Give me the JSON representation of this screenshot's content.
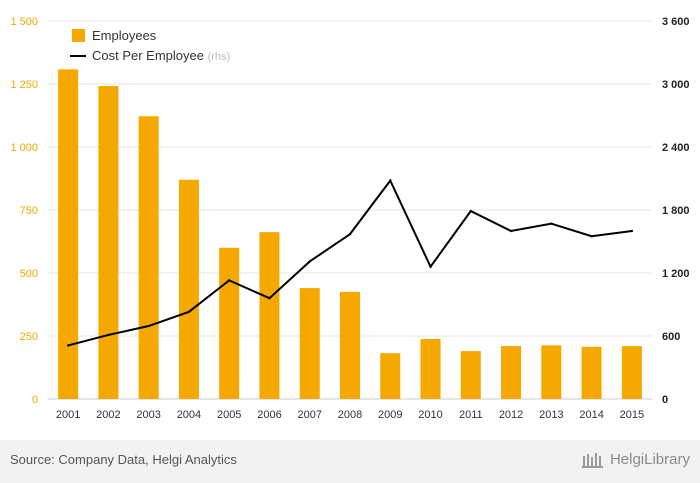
{
  "chart_data": {
    "type": "bar",
    "categories": [
      "2001",
      "2002",
      "2003",
      "2004",
      "2005",
      "2006",
      "2007",
      "2008",
      "2009",
      "2010",
      "2011",
      "2012",
      "2013",
      "2014",
      "2015"
    ],
    "series": [
      {
        "name": "Employees",
        "type": "bar",
        "axis": "left",
        "color": "#f5a800",
        "values": [
          1308,
          1242,
          1122,
          870,
          600,
          662,
          440,
          425,
          182,
          238,
          190,
          210,
          213,
          207,
          210
        ]
      },
      {
        "name": "Cost Per Employee",
        "suffix": "(rhs)",
        "type": "line",
        "axis": "right",
        "color": "#000000",
        "values": [
          510,
          610,
          695,
          830,
          1130,
          960,
          1310,
          1570,
          2080,
          1260,
          1790,
          1600,
          1670,
          1550,
          1600
        ]
      }
    ],
    "y_left": {
      "min": 0,
      "max": 1500,
      "ticks": [
        "0",
        "250",
        "500",
        "750",
        "1 000",
        "1 250",
        "1 500"
      ],
      "color": "#f5a800"
    },
    "y_right": {
      "min": 0,
      "max": 3600,
      "ticks": [
        "0",
        "600",
        "1 200",
        "1 800",
        "2 400",
        "3 000",
        "3 600"
      ]
    },
    "grid": true,
    "legend": "top-left"
  },
  "footer": {
    "source": "Source: Company Data, Helgi Analytics",
    "brand": "HelgiLibrary"
  }
}
